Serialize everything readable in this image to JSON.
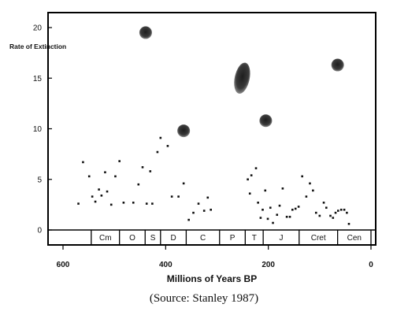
{
  "chart_data": {
    "type": "scatter",
    "title": "",
    "xlabel": "Millions of Years BP",
    "ylabel": "Rate of Extinction",
    "xlim": [
      630,
      0
    ],
    "ylim": [
      0,
      21
    ],
    "x_ticks": [
      600,
      400,
      200,
      0
    ],
    "y_ticks": [
      0,
      5,
      10,
      15,
      20
    ],
    "grid": false,
    "periods": [
      {
        "label": "Cm",
        "start": 545,
        "end": 490
      },
      {
        "label": "O",
        "start": 490,
        "end": 440
      },
      {
        "label": "S",
        "start": 440,
        "end": 410
      },
      {
        "label": "D",
        "start": 410,
        "end": 360
      },
      {
        "label": "C",
        "start": 360,
        "end": 295
      },
      {
        "label": "P",
        "start": 295,
        "end": 245
      },
      {
        "label": "T",
        "start": 245,
        "end": 210
      },
      {
        "label": "J",
        "start": 210,
        "end": 140
      },
      {
        "label": "Cret",
        "start": 140,
        "end": 65
      },
      {
        "label": "Cen",
        "start": 65,
        "end": 0
      }
    ],
    "points": [
      {
        "x": 570,
        "y": 2.6
      },
      {
        "x": 561,
        "y": 6.7
      },
      {
        "x": 549,
        "y": 5.3
      },
      {
        "x": 543,
        "y": 3.3
      },
      {
        "x": 537,
        "y": 2.8
      },
      {
        "x": 530,
        "y": 4.0
      },
      {
        "x": 525,
        "y": 3.4
      },
      {
        "x": 518,
        "y": 5.7
      },
      {
        "x": 514,
        "y": 3.8
      },
      {
        "x": 506,
        "y": 2.5
      },
      {
        "x": 498,
        "y": 5.3
      },
      {
        "x": 490,
        "y": 6.8
      },
      {
        "x": 482,
        "y": 2.7
      },
      {
        "x": 463,
        "y": 2.7
      },
      {
        "x": 453,
        "y": 4.5
      },
      {
        "x": 445,
        "y": 6.2
      },
      {
        "x": 437,
        "y": 2.6
      },
      {
        "x": 430,
        "y": 5.8
      },
      {
        "x": 426,
        "y": 2.6
      },
      {
        "x": 416,
        "y": 7.7
      },
      {
        "x": 410,
        "y": 9.1
      },
      {
        "x": 396,
        "y": 8.3
      },
      {
        "x": 388,
        "y": 3.3
      },
      {
        "x": 375,
        "y": 3.3
      },
      {
        "x": 365,
        "y": 4.6
      },
      {
        "x": 355,
        "y": 1.0
      },
      {
        "x": 346,
        "y": 1.7
      },
      {
        "x": 336,
        "y": 2.6
      },
      {
        "x": 325,
        "y": 1.9
      },
      {
        "x": 318,
        "y": 3.2
      },
      {
        "x": 312,
        "y": 2.0
      },
      {
        "x": 240,
        "y": 5.0
      },
      {
        "x": 236,
        "y": 3.6
      },
      {
        "x": 233,
        "y": 5.4
      },
      {
        "x": 224,
        "y": 6.1
      },
      {
        "x": 220,
        "y": 2.7
      },
      {
        "x": 215,
        "y": 1.2
      },
      {
        "x": 211,
        "y": 2.0
      },
      {
        "x": 206,
        "y": 3.9
      },
      {
        "x": 201,
        "y": 1.1
      },
      {
        "x": 196,
        "y": 2.2
      },
      {
        "x": 191,
        "y": 0.7
      },
      {
        "x": 183,
        "y": 1.5
      },
      {
        "x": 178,
        "y": 2.4
      },
      {
        "x": 172,
        "y": 4.1
      },
      {
        "x": 164,
        "y": 1.3
      },
      {
        "x": 158,
        "y": 1.3
      },
      {
        "x": 153,
        "y": 2.0
      },
      {
        "x": 147,
        "y": 2.1
      },
      {
        "x": 141,
        "y": 2.3
      },
      {
        "x": 134,
        "y": 5.3
      },
      {
        "x": 126,
        "y": 3.3
      },
      {
        "x": 119,
        "y": 4.6
      },
      {
        "x": 113,
        "y": 3.9
      },
      {
        "x": 107,
        "y": 1.7
      },
      {
        "x": 100,
        "y": 1.4
      },
      {
        "x": 92,
        "y": 2.7
      },
      {
        "x": 87,
        "y": 2.2
      },
      {
        "x": 79,
        "y": 1.4
      },
      {
        "x": 74,
        "y": 1.2
      },
      {
        "x": 69,
        "y": 1.7
      },
      {
        "x": 64,
        "y": 1.9
      },
      {
        "x": 58,
        "y": 2.0
      },
      {
        "x": 52,
        "y": 2.0
      },
      {
        "x": 47,
        "y": 1.7
      },
      {
        "x": 43,
        "y": 0.6
      }
    ],
    "mass_extinctions": [
      {
        "x": 439,
        "y": 19.5
      },
      {
        "x": 365,
        "y": 9.8
      },
      {
        "x": 251,
        "y": 15.0
      },
      {
        "x": 205,
        "y": 10.8
      },
      {
        "x": 65,
        "y": 16.3
      }
    ]
  },
  "caption": "(Source: Stanley 1987)"
}
